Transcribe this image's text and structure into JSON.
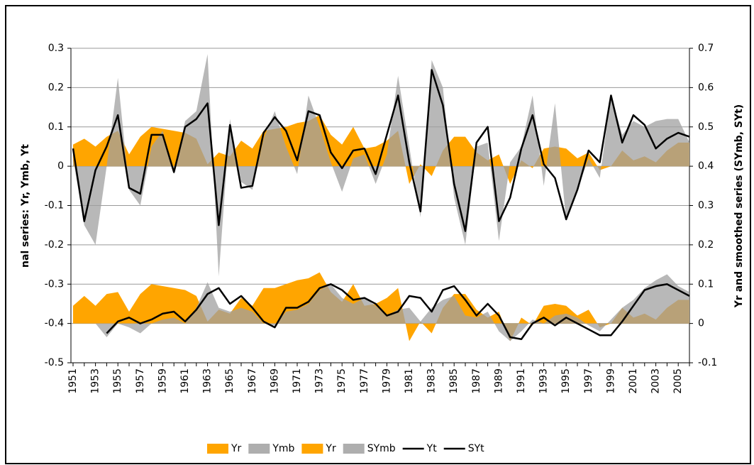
{
  "chart_data": {
    "type": "area",
    "y_label": "nal series: Yr, Ymb, Yt",
    "y2_label": "Yr and smoothed series (SYmb, SYt)",
    "categories": [
      "1951",
      null,
      "1953",
      null,
      "1955",
      null,
      "1957",
      null,
      "1959",
      null,
      "1961",
      null,
      "1963",
      null,
      "1965",
      null,
      "1967",
      null,
      "1969",
      null,
      "1971",
      null,
      "1973",
      null,
      "1975",
      null,
      "1977",
      null,
      "1979",
      null,
      "1981",
      null,
      "1983",
      null,
      "1985",
      null,
      "1987",
      null,
      "1989",
      null,
      "1991",
      null,
      "1993",
      null,
      "1995",
      null,
      "1997",
      null,
      "1999",
      null,
      "2001",
      null,
      "2003",
      null,
      "2005",
      null
    ],
    "ylim": [
      -0.5,
      0.3
    ],
    "yticks": [
      -0.5,
      -0.4,
      -0.3,
      -0.2,
      -0.1,
      0,
      0.1,
      0.2,
      0.3
    ],
    "y2lim": [
      -0.1,
      0.7
    ],
    "y2ticks": [
      -0.1,
      0,
      0.1,
      0.2,
      0.3,
      0.4,
      0.5,
      0.6,
      0.7
    ],
    "grid": true,
    "legend": "bottom",
    "series": [
      {
        "name": "Yr",
        "type": "area",
        "color": "#FFA500",
        "values": [
          0.055,
          0.07,
          0.05,
          0.075,
          0.09,
          0.03,
          0.075,
          0.1,
          0.095,
          0.09,
          0.085,
          0.07,
          0.005,
          0.035,
          0.025,
          0.065,
          0.045,
          0.09,
          0.095,
          0.1,
          0.11,
          0.115,
          0.13,
          0.08,
          0.055,
          0.1,
          0.045,
          0.05,
          0.065,
          0.09,
          -0.045,
          0.005,
          -0.025,
          0.04,
          0.075,
          0.075,
          0.035,
          0.015,
          0.03,
          -0.045,
          0.015,
          -0.005,
          0.045,
          0.05,
          0.045,
          0.02,
          0.035,
          -0.01,
          0,
          0.04,
          0.015,
          0.025,
          0.01,
          0.04,
          0.06,
          0.06
        ]
      },
      {
        "name": "Ymb",
        "type": "area",
        "color": "#A0A0A0",
        "values": [
          0.02,
          -0.15,
          -0.2,
          0,
          0.225,
          -0.06,
          -0.1,
          0.05,
          0.09,
          -0.02,
          0.115,
          0.14,
          0.285,
          -0.28,
          0.12,
          -0.04,
          -0.06,
          0.07,
          0.14,
          0.05,
          -0.02,
          0.18,
          0.1,
          0.01,
          -0.065,
          0.02,
          0.03,
          -0.045,
          0.03,
          0.23,
          0.05,
          -0.13,
          0.27,
          0.2,
          -0.08,
          -0.2,
          0.05,
          0.06,
          -0.19,
          0.01,
          0.05,
          0.18,
          -0.05,
          0.16,
          -0.14,
          -0.06,
          0.02,
          -0.03,
          0.18,
          0.08,
          0.115,
          0.1,
          0.115,
          0.12,
          0.12,
          0.06
        ]
      },
      {
        "name": "Yr",
        "type": "area",
        "color": "#FFA500",
        "axis": "y2",
        "values": [
          0.045,
          0.07,
          0.045,
          0.075,
          0.08,
          0.03,
          0.075,
          0.1,
          0.095,
          0.09,
          0.085,
          0.07,
          0.005,
          0.035,
          0.025,
          0.065,
          0.045,
          0.09,
          0.09,
          0.1,
          0.11,
          0.115,
          0.13,
          0.08,
          0.055,
          0.1,
          0.045,
          0.05,
          0.065,
          0.09,
          -0.045,
          0.005,
          -0.025,
          0.04,
          0.075,
          0.075,
          0.035,
          0.015,
          0.03,
          -0.045,
          0.015,
          -0.005,
          0.045,
          0.05,
          0.045,
          0.02,
          0.035,
          -0.01,
          0,
          0.04,
          0.015,
          0.025,
          0.01,
          0.04,
          0.06,
          0.06
        ]
      },
      {
        "name": "SYmb",
        "type": "area",
        "color": "#A0A0A0",
        "axis": "y2",
        "values": [
          null,
          null,
          0,
          -0.035,
          0,
          -0.01,
          -0.025,
          0,
          0.01,
          0.015,
          0,
          0.04,
          0.105,
          0.04,
          0.03,
          0.04,
          0.03,
          0,
          -0.005,
          0.03,
          0.035,
          0.05,
          0.085,
          0.1,
          0.065,
          0.05,
          0.065,
          0.045,
          0.02,
          0.035,
          0.04,
          0.005,
          0.04,
          0.06,
          0.07,
          0.02,
          0.015,
          0.03,
          -0.02,
          -0.045,
          -0.02,
          0.01,
          0,
          0.02,
          0.025,
          0.015,
          -0.005,
          -0.02,
          0.01,
          0.04,
          0.06,
          0.09,
          0.11,
          0.125,
          0.095,
          0.08
        ]
      },
      {
        "name": "Yt",
        "type": "line",
        "color": "#000000",
        "values": [
          0.045,
          -0.14,
          -0.01,
          0.05,
          0.13,
          -0.055,
          -0.07,
          0.08,
          0.08,
          -0.015,
          0.1,
          0.12,
          0.16,
          -0.15,
          0.105,
          -0.055,
          -0.05,
          0.085,
          0.125,
          0.09,
          0.015,
          0.14,
          0.13,
          0.035,
          -0.005,
          0.04,
          0.045,
          -0.02,
          0.08,
          0.18,
          0.01,
          -0.115,
          0.245,
          0.155,
          -0.045,
          -0.165,
          0.06,
          0.1,
          -0.14,
          -0.08,
          0.045,
          0.13,
          0.005,
          -0.03,
          -0.135,
          -0.06,
          0.04,
          0.01,
          0.18,
          0.06,
          0.13,
          0.105,
          0.045,
          0.07,
          0.085,
          0.075
        ]
      },
      {
        "name": "SYt",
        "type": "line",
        "color": "#000000",
        "axis": "y2",
        "values": [
          null,
          null,
          null,
          -0.025,
          0.005,
          0.015,
          0,
          0.01,
          0.025,
          0.03,
          0.005,
          0.035,
          0.075,
          0.09,
          0.05,
          0.07,
          0.04,
          0.005,
          -0.01,
          0.04,
          0.04,
          0.055,
          0.09,
          0.1,
          0.085,
          0.06,
          0.065,
          0.05,
          0.02,
          0.03,
          0.07,
          0.065,
          0.03,
          0.085,
          0.095,
          0.06,
          0.02,
          0.05,
          0.02,
          -0.035,
          -0.04,
          0,
          0.015,
          -0.005,
          0.015,
          0,
          -0.015,
          -0.03,
          -0.03,
          0.005,
          0.045,
          0.085,
          0.095,
          0.1,
          0.085,
          0.07
        ]
      }
    ]
  }
}
